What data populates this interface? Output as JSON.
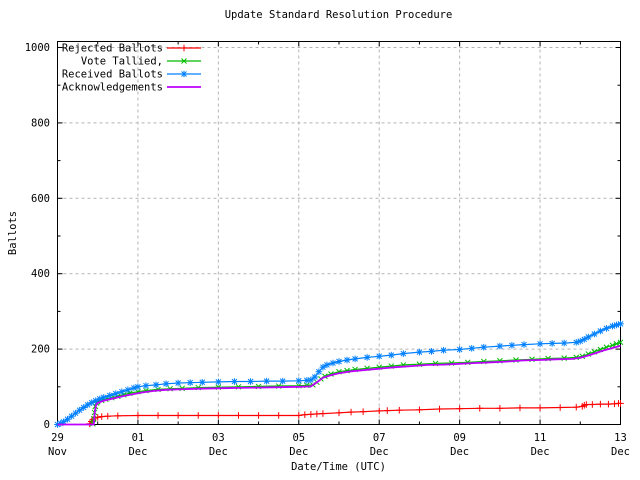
{
  "chart_data": {
    "type": "line",
    "title": "Update Standard Resolution Procedure",
    "xlabel": "Date/Time (UTC)",
    "ylabel": "Ballots",
    "background_color": "#ffffff",
    "grid": {
      "show": true,
      "style": "dashed",
      "color": "#b4b4b4"
    },
    "legend_position": "top-left-inside",
    "x_axis": {
      "unit": "days since 29 Nov 00:00 UTC",
      "min": 0,
      "max": 14,
      "minor_step": 1,
      "ticks": [
        {
          "pos": 0,
          "line1": "29",
          "line2": "Nov"
        },
        {
          "pos": 2,
          "line1": "01",
          "line2": "Dec"
        },
        {
          "pos": 4,
          "line1": "03",
          "line2": "Dec"
        },
        {
          "pos": 6,
          "line1": "05",
          "line2": "Dec"
        },
        {
          "pos": 8,
          "line1": "07",
          "line2": "Dec"
        },
        {
          "pos": 10,
          "line1": "09",
          "line2": "Dec"
        },
        {
          "pos": 12,
          "line1": "11",
          "line2": "Dec"
        },
        {
          "pos": 14,
          "line1": "13",
          "line2": "Dec"
        }
      ]
    },
    "y_axis": {
      "min": 0,
      "max": 1000,
      "minor_step": 100,
      "ticks": [
        0,
        200,
        400,
        600,
        800,
        1000
      ]
    },
    "series": [
      {
        "name": "Rejected Ballots",
        "color": "#ff0000",
        "marker": "plus",
        "points": [
          [
            0.8,
            2
          ],
          [
            0.84,
            8
          ],
          [
            0.88,
            13
          ],
          [
            0.93,
            17
          ],
          [
            1.0,
            19
          ],
          [
            1.1,
            21
          ],
          [
            1.25,
            22
          ],
          [
            1.5,
            23
          ],
          [
            2.0,
            24
          ],
          [
            2.5,
            24
          ],
          [
            3.0,
            24
          ],
          [
            3.5,
            24
          ],
          [
            4.0,
            24
          ],
          [
            4.5,
            24
          ],
          [
            5.0,
            24
          ],
          [
            5.5,
            24
          ],
          [
            6.0,
            24
          ],
          [
            6.15,
            26
          ],
          [
            6.3,
            27
          ],
          [
            6.45,
            28
          ],
          [
            6.6,
            29
          ],
          [
            7.0,
            31
          ],
          [
            7.3,
            33
          ],
          [
            7.6,
            34
          ],
          [
            8.0,
            36
          ],
          [
            8.2,
            37
          ],
          [
            8.5,
            38
          ],
          [
            9.0,
            39
          ],
          [
            9.5,
            41
          ],
          [
            10.0,
            42
          ],
          [
            10.5,
            43
          ],
          [
            11.0,
            43
          ],
          [
            11.5,
            44
          ],
          [
            12.0,
            44
          ],
          [
            12.5,
            45
          ],
          [
            12.9,
            46
          ],
          [
            13.05,
            48
          ],
          [
            13.1,
            51
          ],
          [
            13.15,
            53
          ],
          [
            13.3,
            53
          ],
          [
            13.5,
            54
          ],
          [
            13.7,
            54
          ],
          [
            13.85,
            55
          ],
          [
            13.95,
            56
          ],
          [
            14,
            56
          ]
        ]
      },
      {
        "name": "Vote Tallied,",
        "color": "#00bb00",
        "marker": "cross",
        "points": [
          [
            0.88,
            2
          ],
          [
            0.9,
            15
          ],
          [
            0.92,
            32
          ],
          [
            0.94,
            48
          ],
          [
            0.97,
            57
          ],
          [
            1.0,
            60
          ],
          [
            1.1,
            64
          ],
          [
            1.2,
            67
          ],
          [
            1.35,
            71
          ],
          [
            1.5,
            75
          ],
          [
            1.65,
            79
          ],
          [
            1.8,
            83
          ],
          [
            2.0,
            87
          ],
          [
            2.2,
            90
          ],
          [
            2.5,
            93
          ],
          [
            2.8,
            95
          ],
          [
            3.1,
            96
          ],
          [
            3.5,
            98
          ],
          [
            4.0,
            99
          ],
          [
            4.5,
            100
          ],
          [
            5.0,
            101
          ],
          [
            5.5,
            102
          ],
          [
            6.0,
            103
          ],
          [
            6.2,
            104
          ],
          [
            6.35,
            105
          ],
          [
            6.45,
            112
          ],
          [
            6.55,
            121
          ],
          [
            6.65,
            128
          ],
          [
            6.8,
            134
          ],
          [
            7.0,
            140
          ],
          [
            7.2,
            143
          ],
          [
            7.4,
            146
          ],
          [
            7.7,
            149
          ],
          [
            8.0,
            152
          ],
          [
            8.3,
            155
          ],
          [
            8.6,
            158
          ],
          [
            9.0,
            160
          ],
          [
            9.4,
            162
          ],
          [
            9.8,
            163
          ],
          [
            10.2,
            165
          ],
          [
            10.6,
            167
          ],
          [
            11.0,
            169
          ],
          [
            11.4,
            171
          ],
          [
            11.8,
            173
          ],
          [
            12.2,
            175
          ],
          [
            12.6,
            176
          ],
          [
            12.9,
            178
          ],
          [
            13.05,
            181
          ],
          [
            13.2,
            187
          ],
          [
            13.35,
            193
          ],
          [
            13.5,
            199
          ],
          [
            13.65,
            205
          ],
          [
            13.8,
            210
          ],
          [
            13.9,
            214
          ],
          [
            14,
            218
          ]
        ]
      },
      {
        "name": "Received Ballots",
        "color": "#0080ff",
        "marker": "asterisk",
        "points": [
          [
            0,
            0
          ],
          [
            0.08,
            3
          ],
          [
            0.15,
            7
          ],
          [
            0.25,
            14
          ],
          [
            0.35,
            22
          ],
          [
            0.45,
            30
          ],
          [
            0.55,
            38
          ],
          [
            0.65,
            45
          ],
          [
            0.75,
            52
          ],
          [
            0.85,
            58
          ],
          [
            0.95,
            63
          ],
          [
            1.05,
            68
          ],
          [
            1.15,
            72
          ],
          [
            1.3,
            77
          ],
          [
            1.45,
            82
          ],
          [
            1.6,
            87
          ],
          [
            1.75,
            92
          ],
          [
            1.9,
            97
          ],
          [
            2.0,
            100
          ],
          [
            2.2,
            103
          ],
          [
            2.45,
            105
          ],
          [
            2.7,
            108
          ],
          [
            3.0,
            110
          ],
          [
            3.3,
            111
          ],
          [
            3.6,
            112
          ],
          [
            4.0,
            113
          ],
          [
            4.4,
            114
          ],
          [
            4.8,
            114
          ],
          [
            5.2,
            115
          ],
          [
            5.6,
            115
          ],
          [
            6.0,
            116
          ],
          [
            6.2,
            117
          ],
          [
            6.3,
            118
          ],
          [
            6.4,
            126
          ],
          [
            6.5,
            140
          ],
          [
            6.6,
            152
          ],
          [
            6.7,
            158
          ],
          [
            6.85,
            163
          ],
          [
            7.0,
            167
          ],
          [
            7.2,
            171
          ],
          [
            7.4,
            174
          ],
          [
            7.7,
            178
          ],
          [
            8.0,
            181
          ],
          [
            8.3,
            184
          ],
          [
            8.6,
            188
          ],
          [
            9.0,
            192
          ],
          [
            9.3,
            194
          ],
          [
            9.6,
            197
          ],
          [
            10.0,
            199
          ],
          [
            10.3,
            202
          ],
          [
            10.6,
            205
          ],
          [
            11.0,
            208
          ],
          [
            11.3,
            210
          ],
          [
            11.6,
            212
          ],
          [
            12.0,
            214
          ],
          [
            12.3,
            215
          ],
          [
            12.6,
            216
          ],
          [
            12.9,
            218
          ],
          [
            13.0,
            221
          ],
          [
            13.1,
            226
          ],
          [
            13.2,
            232
          ],
          [
            13.35,
            240
          ],
          [
            13.5,
            248
          ],
          [
            13.65,
            255
          ],
          [
            13.8,
            261
          ],
          [
            13.9,
            264
          ],
          [
            14,
            267
          ]
        ]
      },
      {
        "name": "Acknowledgements",
        "color": "#bf00ff",
        "marker": "none",
        "points": [
          [
            0,
            0
          ],
          [
            0.9,
            0
          ],
          [
            0.93,
            35
          ],
          [
            0.96,
            52
          ],
          [
            1.0,
            57
          ],
          [
            1.15,
            63
          ],
          [
            1.3,
            67
          ],
          [
            1.5,
            72
          ],
          [
            1.7,
            77
          ],
          [
            1.9,
            81
          ],
          [
            2.1,
            85
          ],
          [
            2.4,
            89
          ],
          [
            2.7,
            92
          ],
          [
            3.0,
            93
          ],
          [
            3.5,
            95
          ],
          [
            4.0,
            96
          ],
          [
            4.5,
            97
          ],
          [
            5.0,
            98
          ],
          [
            5.5,
            99
          ],
          [
            6.0,
            100
          ],
          [
            6.3,
            101
          ],
          [
            6.45,
            112
          ],
          [
            6.6,
            124
          ],
          [
            6.8,
            131
          ],
          [
            7.0,
            136
          ],
          [
            7.3,
            141
          ],
          [
            7.6,
            144
          ],
          [
            8.0,
            148
          ],
          [
            8.4,
            152
          ],
          [
            8.8,
            155
          ],
          [
            9.2,
            158
          ],
          [
            9.6,
            159
          ],
          [
            10.0,
            161
          ],
          [
            10.4,
            163
          ],
          [
            10.8,
            165
          ],
          [
            11.2,
            167
          ],
          [
            11.6,
            170
          ],
          [
            12.0,
            171
          ],
          [
            12.4,
            173
          ],
          [
            12.8,
            174
          ],
          [
            13.0,
            177
          ],
          [
            13.2,
            183
          ],
          [
            13.4,
            190
          ],
          [
            13.6,
            197
          ],
          [
            13.8,
            203
          ],
          [
            14,
            209
          ]
        ]
      }
    ]
  }
}
